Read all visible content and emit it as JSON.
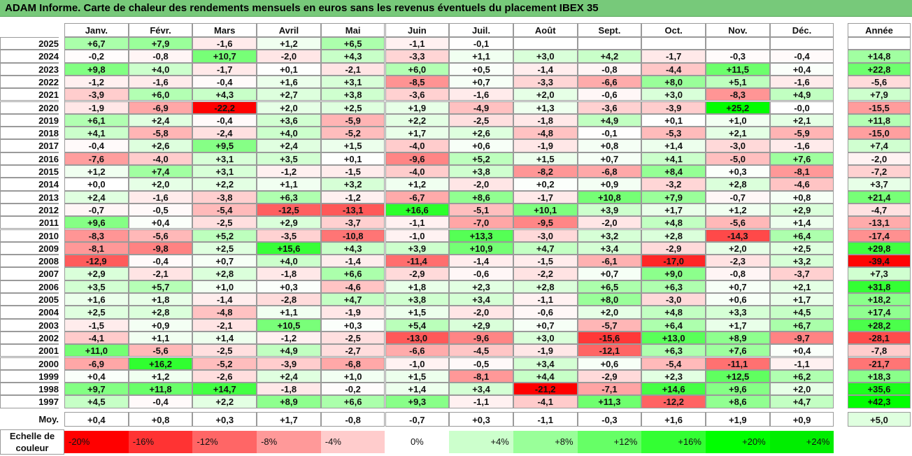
{
  "title": "ADAM Informe. Carte de chaleur des rendements mensuels en euros sans les revenus éventuels du placement IBEX 35",
  "chart_data": {
    "type": "heatmap",
    "title": "ADAM Informe. Carte de chaleur des rendements mensuels en euros sans les revenus éventuels du placement IBEX 35",
    "months": [
      "Janv.",
      "Févr.",
      "Mars",
      "Avril",
      "Mai",
      "Juin",
      "Juil.",
      "Août",
      "Sept.",
      "Oct.",
      "Nov.",
      "Déc."
    ],
    "annual_label": "Année",
    "rows": [
      {
        "year": "2025",
        "values": [
          "+6,7",
          "+7,9",
          "-1,6",
          "+1,2",
          "+6,5",
          "-1,1",
          "-0,1",
          "",
          "",
          "",
          "",
          ""
        ],
        "annual": ""
      },
      {
        "year": "2024",
        "values": [
          "-0,2",
          "-0,8",
          "+10,7",
          "-2,0",
          "+4,3",
          "-3,3",
          "+1,1",
          "+3,0",
          "+4,2",
          "-1,7",
          "-0,3",
          "-0,4"
        ],
        "annual": "+14,8"
      },
      {
        "year": "2023",
        "values": [
          "+9,8",
          "+4,0",
          "-1,7",
          "+0,1",
          "-2,1",
          "+6,0",
          "+0,5",
          "-1,4",
          "-0,8",
          "-4,4",
          "+11,5",
          "+0,4"
        ],
        "annual": "+22,8"
      },
      {
        "year": "2022",
        "values": [
          "-1,2",
          "-1,6",
          "-0,4",
          "+1,6",
          "+3,1",
          "-8,5",
          "+0,7",
          "-3,3",
          "-6,6",
          "+8,0",
          "+5,1",
          "-1,6"
        ],
        "annual": "-5,6"
      },
      {
        "year": "2021",
        "values": [
          "-3,9",
          "+6,0",
          "+4,3",
          "+2,7",
          "+3,8",
          "-3,6",
          "-1,6",
          "+2,0",
          "-0,6",
          "+3,0",
          "-8,3",
          "+4,9"
        ],
        "annual": "+7,9"
      },
      {
        "year": "2020",
        "values": [
          "-1,9",
          "-6,9",
          "-22,2",
          "+2,0",
          "+2,5",
          "+1,9",
          "-4,9",
          "+1,3",
          "-3,6",
          "-3,9",
          "+25,2",
          "-0,0"
        ],
        "annual": "-15,5"
      },
      {
        "year": "2019",
        "values": [
          "+6,1",
          "+2,4",
          "-0,4",
          "+3,6",
          "-5,9",
          "+2,2",
          "-2,5",
          "-1,8",
          "+4,9",
          "+0,1",
          "+1,0",
          "+2,1"
        ],
        "annual": "+11,8"
      },
      {
        "year": "2018",
        "values": [
          "+4,1",
          "-5,8",
          "-2,4",
          "+4,0",
          "-5,2",
          "+1,7",
          "+2,6",
          "-4,8",
          "-0,1",
          "-5,3",
          "+2,1",
          "-5,9"
        ],
        "annual": "-15,0"
      },
      {
        "year": "2017",
        "values": [
          "-0,4",
          "+2,6",
          "+9,5",
          "+2,4",
          "+1,5",
          "-4,0",
          "+0,6",
          "-1,9",
          "+0,8",
          "+1,4",
          "-3,0",
          "-1,6"
        ],
        "annual": "+7,4"
      },
      {
        "year": "2016",
        "values": [
          "-7,6",
          "-4,0",
          "+3,1",
          "+3,5",
          "+0,1",
          "-9,6",
          "+5,2",
          "+1,5",
          "+0,7",
          "+4,1",
          "-5,0",
          "+7,6"
        ],
        "annual": "-2,0"
      },
      {
        "year": "2015",
        "values": [
          "+1,2",
          "+7,4",
          "+3,1",
          "-1,2",
          "-1,5",
          "-4,0",
          "+3,8",
          "-8,2",
          "-6,8",
          "+8,4",
          "+0,3",
          "-8,1"
        ],
        "annual": "-7,2"
      },
      {
        "year": "2014",
        "values": [
          "+0,0",
          "+2,0",
          "+2,2",
          "+1,1",
          "+3,2",
          "+1,2",
          "-2,0",
          "+0,2",
          "+0,9",
          "-3,2",
          "+2,8",
          "-4,6"
        ],
        "annual": "+3,7"
      },
      {
        "year": "2013",
        "values": [
          "+2,4",
          "-1,6",
          "-3,8",
          "+6,3",
          "-1,2",
          "-6,7",
          "+8,6",
          "-1,7",
          "+10,8",
          "+7,9",
          "-0,7",
          "+0,8"
        ],
        "annual": "+21,4"
      },
      {
        "year": "2012",
        "values": [
          "-0,7",
          "-0,5",
          "-5,4",
          "-12,5",
          "-13,1",
          "+16,6",
          "-5,1",
          "+10,1",
          "+3,9",
          "+1,7",
          "+1,2",
          "+2,9"
        ],
        "annual": "-4,7"
      },
      {
        "year": "2011",
        "values": [
          "+9,6",
          "+0,4",
          "-2,5",
          "+2,9",
          "-3,7",
          "-1,1",
          "-7,0",
          "-9,5",
          "-2,0",
          "+4,8",
          "-5,6",
          "+1,4"
        ],
        "annual": "-13,1"
      },
      {
        "year": "2010",
        "values": [
          "-8,3",
          "-5,6",
          "+5,2",
          "-3,5",
          "-10,8",
          "-1,0",
          "+13,3",
          "-3,0",
          "+3,2",
          "+2,8",
          "-14,3",
          "+6,4"
        ],
        "annual": "-17,4"
      },
      {
        "year": "2009",
        "values": [
          "-8,1",
          "-9,8",
          "+2,5",
          "+15,6",
          "+4,3",
          "+3,9",
          "+10,9",
          "+4,7",
          "+3,4",
          "-2,9",
          "+2,0",
          "+2,5"
        ],
        "annual": "+29,8"
      },
      {
        "year": "2008",
        "values": [
          "-12,9",
          "-0,4",
          "+0,7",
          "+4,0",
          "-1,4",
          "-11,4",
          "-1,4",
          "-1,5",
          "-6,1",
          "-17,0",
          "-2,3",
          "+3,2"
        ],
        "annual": "-39,4"
      },
      {
        "year": "2007",
        "values": [
          "+2,9",
          "-2,1",
          "+2,8",
          "-1,8",
          "+6,6",
          "-2,9",
          "-0,6",
          "-2,2",
          "+0,7",
          "+9,0",
          "-0,8",
          "-3,7"
        ],
        "annual": "+7,3"
      },
      {
        "year": "2006",
        "values": [
          "+3,5",
          "+5,7",
          "+1,0",
          "+0,3",
          "-4,6",
          "+1,8",
          "+2,3",
          "+2,8",
          "+6,5",
          "+6,3",
          "+0,7",
          "+2,1"
        ],
        "annual": "+31,8"
      },
      {
        "year": "2005",
        "values": [
          "+1,6",
          "+1,8",
          "-1,4",
          "-2,8",
          "+4,7",
          "+3,8",
          "+3,4",
          "-1,1",
          "+8,0",
          "-3,0",
          "+0,6",
          "+1,7"
        ],
        "annual": "+18,2"
      },
      {
        "year": "2004",
        "values": [
          "+2,5",
          "+2,8",
          "-4,8",
          "+1,1",
          "-1,9",
          "+1,5",
          "-2,0",
          "-0,6",
          "+2,0",
          "+4,8",
          "+3,3",
          "+4,5"
        ],
        "annual": "+17,4"
      },
      {
        "year": "2003",
        "values": [
          "-1,5",
          "+0,9",
          "-2,1",
          "+10,5",
          "+0,3",
          "+5,4",
          "+2,9",
          "+0,7",
          "-5,7",
          "+6,4",
          "+1,7",
          "+6,7"
        ],
        "annual": "+28,2"
      },
      {
        "year": "2002",
        "values": [
          "-4,1",
          "+1,1",
          "+1,4",
          "-1,2",
          "-2,5",
          "-13,0",
          "-9,6",
          "+3,0",
          "-15,6",
          "+13,0",
          "+8,9",
          "-9,7"
        ],
        "annual": "-28,1"
      },
      {
        "year": "2001",
        "values": [
          "+11,0",
          "-5,6",
          "-2,5",
          "+4,9",
          "-2,7",
          "-6,6",
          "-4,5",
          "-1,9",
          "-12,1",
          "+6,3",
          "+7,6",
          "+0,4"
        ],
        "annual": "-7,8"
      },
      {
        "year": "2000",
        "values": [
          "-6,9",
          "+16,2",
          "-5,2",
          "-3,9",
          "-6,8",
          "-1,0",
          "-0,5",
          "+3,4",
          "+0,6",
          "-5,4",
          "-11,1",
          "-1,1"
        ],
        "annual": "-21,7"
      },
      {
        "year": "1999",
        "values": [
          "+0,4",
          "+1,2",
          "-2,6",
          "+2,4",
          "+1,0",
          "+1,5",
          "-8,1",
          "+4,4",
          "-2,9",
          "+2,3",
          "+12,5",
          "+6,2"
        ],
        "annual": "+18,3"
      },
      {
        "year": "1998",
        "values": [
          "+9,7",
          "+11,8",
          "+14,7",
          "-1,8",
          "-0,2",
          "+1,4",
          "+3,4",
          "-21,2",
          "-7,1",
          "+14,6",
          "+9,6",
          "+2,0"
        ],
        "annual": "+35,6"
      },
      {
        "year": "1997",
        "values": [
          "+4,5",
          "-0,4",
          "+2,2",
          "+8,9",
          "+6,6",
          "+9,3",
          "-1,1",
          "-4,1",
          "+11,3",
          "-12,2",
          "+8,6",
          "+4,7"
        ],
        "annual": "+42,3"
      }
    ],
    "average": {
      "label": "Moy.",
      "values": [
        "+0,4",
        "+0,8",
        "+0,3",
        "+1,7",
        "-0,8",
        "-0,7",
        "+0,3",
        "-1,1",
        "-0,3",
        "+1,6",
        "+1,9",
        "+0,9"
      ],
      "annual": "+5,0"
    },
    "color_scale": {
      "label_line1": "Echelle de",
      "label_line2": "couleur",
      "stops": [
        {
          "label": "-20%",
          "value": -20,
          "color": "#ff0000"
        },
        {
          "label": "-16%",
          "value": -16,
          "color": "#ff3333"
        },
        {
          "label": "-12%",
          "value": -12,
          "color": "#ff6666"
        },
        {
          "label": "-8%",
          "value": -8,
          "color": "#ff9999"
        },
        {
          "label": "-4%",
          "value": -4,
          "color": "#ffcccc"
        },
        {
          "label": "0%",
          "value": 0,
          "color": "#ffffff"
        },
        {
          "label": "+4%",
          "value": 4,
          "color": "#ccffcc"
        },
        {
          "label": "+8%",
          "value": 8,
          "color": "#99ff99"
        },
        {
          "label": "+12%",
          "value": 12,
          "color": "#66ff66"
        },
        {
          "label": "+16%",
          "value": 16,
          "color": "#33ff33"
        },
        {
          "label": "+20%",
          "value": 20,
          "color": "#00ff00"
        },
        {
          "label": "+24%",
          "value": 24,
          "color": "#00ee00"
        }
      ]
    },
    "annual_color_range": [
      -40,
      40
    ]
  }
}
